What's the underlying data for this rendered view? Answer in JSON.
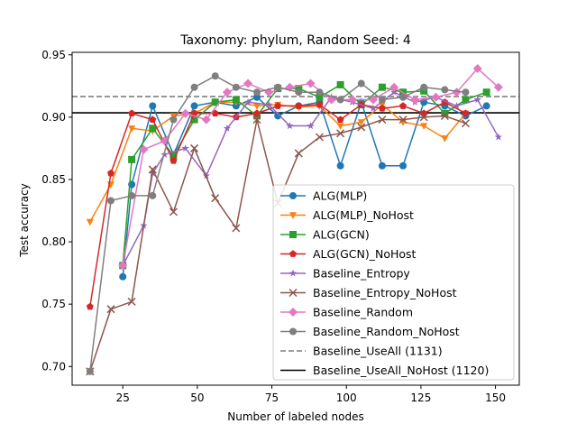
{
  "chart_data": {
    "type": "line",
    "title": "Taxonomy: phylum, Random Seed: 4",
    "xlabel": "Number of labeled nodes",
    "ylabel": "Test accuracy",
    "xlim": [
      8,
      158
    ],
    "ylim": [
      0.685,
      0.952
    ],
    "xticks": [
      25,
      50,
      75,
      100,
      125,
      150
    ],
    "yticks": [
      0.7,
      0.75,
      0.8,
      0.85,
      0.9,
      0.95
    ],
    "xtick_labels": [
      "25",
      "50",
      "75",
      "100",
      "125",
      "150"
    ],
    "ytick_labels": [
      "0.70",
      "0.75",
      "0.80",
      "0.85",
      "0.90",
      "0.95"
    ],
    "legend_position": "lower-right",
    "series": [
      {
        "name": "ALG(MLP)",
        "color": "#1f77b4",
        "marker": "circle",
        "x": [
          25,
          28,
          35,
          42,
          49,
          56,
          63,
          70,
          77,
          84,
          91,
          98,
          105,
          112,
          119,
          126,
          133,
          140,
          147
        ],
        "y": [
          0.772,
          0.846,
          0.909,
          0.87,
          0.909,
          0.912,
          0.909,
          0.916,
          0.901,
          0.909,
          0.912,
          0.861,
          0.912,
          0.861,
          0.861,
          0.912,
          0.909,
          0.901,
          0.909
        ]
      },
      {
        "name": "ALG(MLP)_NoHost",
        "color": "#ff7f0e",
        "marker": "triangle-down",
        "x": [
          14,
          21,
          28,
          35,
          42,
          49,
          56,
          63,
          70,
          77,
          84,
          91,
          98,
          105,
          112,
          119,
          126,
          133,
          140
        ],
        "y": [
          0.816,
          0.846,
          0.891,
          0.889,
          0.901,
          0.903,
          0.912,
          0.912,
          0.909,
          0.91,
          0.908,
          0.909,
          0.893,
          0.896,
          0.91,
          0.896,
          0.893,
          0.883,
          0.903
        ]
      },
      {
        "name": "ALG(GCN)",
        "color": "#2ca02c",
        "marker": "square",
        "x": [
          25,
          28,
          35,
          42,
          49,
          56,
          63,
          70,
          77,
          84,
          91,
          98,
          105,
          112,
          119,
          126,
          133,
          140,
          147
        ],
        "y": [
          0.781,
          0.866,
          0.891,
          0.869,
          0.898,
          0.912,
          0.914,
          0.901,
          0.923,
          0.923,
          0.916,
          0.926,
          0.91,
          0.924,
          0.92,
          0.921,
          0.903,
          0.914,
          0.92
        ]
      },
      {
        "name": "ALG(GCN)_NoHost",
        "color": "#d62728",
        "marker": "pentagon",
        "x": [
          14,
          21,
          28,
          35,
          42,
          49,
          56,
          63,
          70,
          77,
          84,
          91,
          98,
          105,
          112,
          119,
          126,
          133,
          140
        ],
        "y": [
          0.748,
          0.855,
          0.903,
          0.898,
          0.865,
          0.903,
          0.903,
          0.9,
          0.903,
          0.909,
          0.909,
          0.91,
          0.898,
          0.91,
          0.907,
          0.909,
          0.903,
          0.912,
          0.903
        ]
      },
      {
        "name": "Baseline_Entropy",
        "color": "#9467bd",
        "marker": "star",
        "x": [
          25,
          32,
          35,
          39,
          46,
          53,
          60,
          67,
          74,
          81,
          88,
          95,
          102,
          109,
          116,
          123,
          130,
          137,
          144,
          151
        ],
        "y": [
          0.781,
          0.813,
          0.855,
          0.87,
          0.875,
          0.853,
          0.891,
          0.912,
          0.91,
          0.893,
          0.893,
          0.916,
          0.912,
          0.907,
          0.92,
          0.912,
          0.916,
          0.909,
          0.914,
          0.884
        ]
      },
      {
        "name": "Baseline_Entropy_NoHost",
        "color": "#8c564b",
        "marker": "x",
        "x": [
          14,
          21,
          28,
          35,
          42,
          49,
          56,
          63,
          70,
          77,
          84,
          91,
          98,
          105,
          112,
          119,
          126,
          133,
          140
        ],
        "y": [
          0.696,
          0.746,
          0.752,
          0.858,
          0.824,
          0.875,
          0.835,
          0.811,
          0.898,
          0.831,
          0.871,
          0.884,
          0.887,
          0.892,
          0.898,
          0.898,
          0.9,
          0.901,
          0.895
        ]
      },
      {
        "name": "Baseline_Random",
        "color": "#e377c2",
        "marker": "diamond",
        "x": [
          25,
          32,
          39,
          46,
          53,
          60,
          67,
          74,
          81,
          88,
          95,
          102,
          109,
          116,
          123,
          130,
          137,
          144,
          151
        ],
        "y": [
          0.781,
          0.874,
          0.881,
          0.903,
          0.898,
          0.92,
          0.927,
          0.92,
          0.924,
          0.927,
          0.914,
          0.914,
          0.914,
          0.924,
          0.914,
          0.916,
          0.92,
          0.939,
          0.924
        ]
      },
      {
        "name": "Baseline_Random_NoHost",
        "color": "#7f7f7f",
        "marker": "circle",
        "x": [
          14,
          21,
          28,
          35,
          42,
          49,
          56,
          63,
          70,
          77,
          84,
          91,
          98,
          105,
          112,
          119,
          126,
          133,
          140
        ],
        "y": [
          0.696,
          0.833,
          0.837,
          0.837,
          0.898,
          0.924,
          0.933,
          0.924,
          0.92,
          0.924,
          0.92,
          0.92,
          0.914,
          0.927,
          0.914,
          0.916,
          0.924,
          0.922,
          0.92
        ]
      }
    ],
    "hlines": [
      {
        "name": "Baseline_UseAll (1131)",
        "color": "#7f7f7f",
        "style": "dashed",
        "y": 0.9165
      },
      {
        "name": "Baseline_UseAll_NoHost (1120)",
        "color": "#000000",
        "style": "solid",
        "y": 0.9035
      }
    ]
  }
}
